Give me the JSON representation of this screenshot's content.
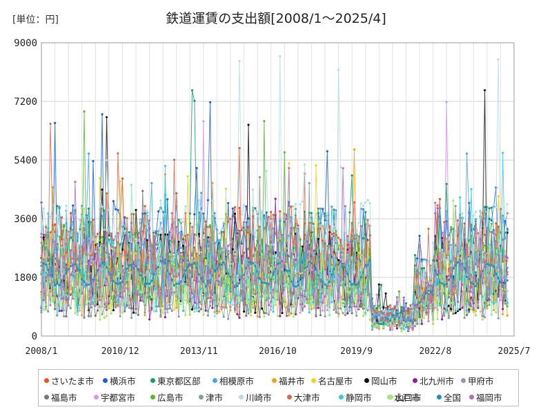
{
  "header": {
    "unit_label": "[単位：円]",
    "title": "鉄道運賃の支出額[2008/1～2025/4]"
  },
  "chart_data": {
    "type": "line",
    "title": "鉄道運賃の支出額[2008/1～2025/4]",
    "ylabel": "[単位：円]",
    "xlabel": "",
    "ylim": [
      0,
      9000
    ],
    "yticks": [
      "0",
      "1800",
      "3600",
      "5400",
      "7200",
      "9000"
    ],
    "xticks": [
      "2008/1",
      "2010/12",
      "2013/11",
      "2016/10",
      "2019/9",
      "2022/8",
      "2025/7"
    ],
    "grid": "vertical-and-horizontal",
    "legend_position": "bottom",
    "series": [
      {
        "name": "さいたま市",
        "color": "#e8531f",
        "summary": {
          "typical_range": [
            1200,
            4000
          ],
          "peak": 5500
        }
      },
      {
        "name": "横浜市",
        "color": "#1f5fd6",
        "summary": {
          "typical_range": [
            1500,
            4200
          ],
          "peak": 7300
        }
      },
      {
        "name": "東京都区部",
        "color": "#1a9a6c",
        "summary": {
          "typical_range": [
            1500,
            4000
          ],
          "peak": 7800
        }
      },
      {
        "name": "相模原市",
        "color": "#4aa6e8",
        "summary": {
          "typical_range": [
            1200,
            4000
          ],
          "peak": 6200
        }
      },
      {
        "name": "福井市",
        "color": "#f0a11c",
        "summary": {
          "typical_range": [
            600,
            2800
          ],
          "peak": 5800
        }
      },
      {
        "name": "名古屋市",
        "color": "#ecd61a",
        "summary": {
          "typical_range": [
            800,
            3000
          ],
          "peak": 5600
        }
      },
      {
        "name": "岡山市",
        "color": "#111111",
        "summary": {
          "typical_range": [
            700,
            3200
          ],
          "peak": 8800
        }
      },
      {
        "name": "北九州市",
        "color": "#8e1f9e",
        "summary": {
          "typical_range": [
            500,
            2600
          ],
          "peak": 5000
        }
      },
      {
        "name": "甲府市",
        "color": "#8a9bab",
        "summary": {
          "typical_range": [
            500,
            2600
          ],
          "peak": 4800
        }
      },
      {
        "name": "福島市",
        "color": "#777777",
        "summary": {
          "typical_range": [
            600,
            2800
          ],
          "peak": 5200
        }
      },
      {
        "name": "宇都宮市",
        "color": "#d39ae6",
        "summary": {
          "typical_range": [
            700,
            3000
          ],
          "peak": 7300
        }
      },
      {
        "name": "広島市",
        "color": "#5cb531",
        "summary": {
          "typical_range": [
            900,
            3500
          ],
          "peak": 7100
        }
      },
      {
        "name": "津市",
        "color": "#86a089",
        "summary": {
          "typical_range": [
            600,
            2800
          ],
          "peak": 5300
        }
      },
      {
        "name": "川崎市",
        "color": "#b6dde6",
        "summary": {
          "typical_range": [
            1500,
            4200
          ],
          "peak": 8900
        }
      },
      {
        "name": "大津市",
        "color": "#d9684e",
        "summary": {
          "typical_range": [
            1200,
            3800
          ],
          "peak": 6600
        }
      },
      {
        "name": "静岡市",
        "color": "#33cfe0",
        "summary": {
          "typical_range": [
            700,
            3000
          ],
          "peak": 5700
        }
      },
      {
        "name": "水戸市",
        "color": "#7fecc4",
        "summary": {
          "typical_range": [
            600,
            2800
          ],
          "peak": 5500
        }
      },
      {
        "name": "山口市",
        "color": "#b7e06b",
        "summary": {
          "typical_range": [
            500,
            2600
          ],
          "peak": 5500
        }
      },
      {
        "name": "全国",
        "color": "#1d92b8",
        "summary": {
          "typical_range": [
            1400,
            2400
          ],
          "peak": 2600
        }
      },
      {
        "name": "福岡市",
        "color": "#b070c0",
        "summary": {
          "typical_range": [
            800,
            3200
          ],
          "peak": 5200
        }
      }
    ]
  }
}
